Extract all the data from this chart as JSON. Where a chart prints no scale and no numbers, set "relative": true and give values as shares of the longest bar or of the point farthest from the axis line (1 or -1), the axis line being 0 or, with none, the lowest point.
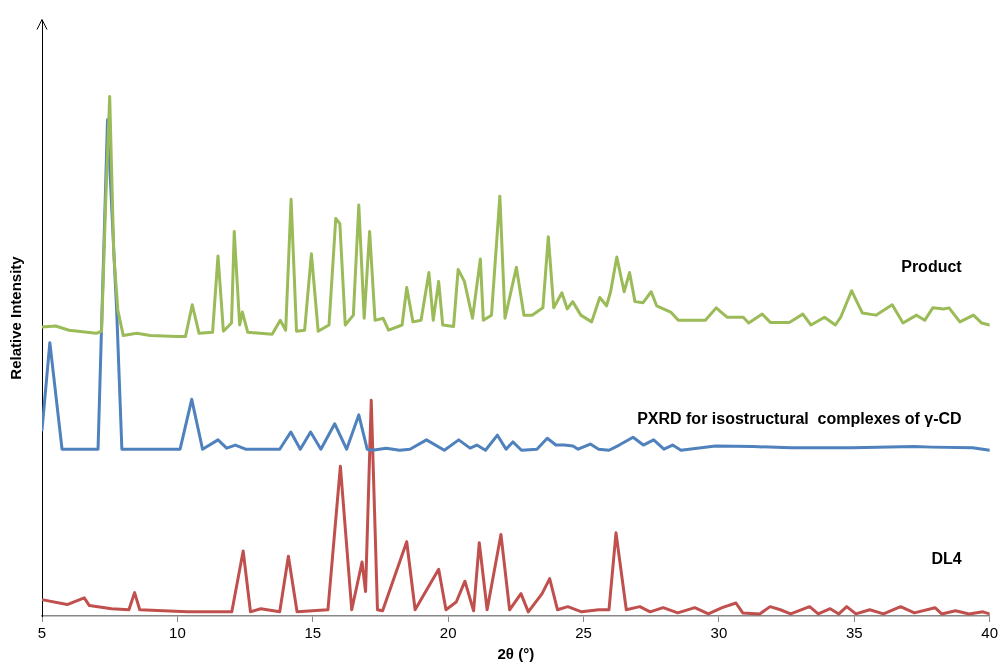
{
  "chart_data": {
    "type": "line",
    "relative": true,
    "xlabel": "2θ (°)",
    "ylabel": "Relative Intensity",
    "xlim": [
      5,
      40
    ],
    "xticks": [
      5,
      10,
      15,
      20,
      25,
      30,
      35,
      40
    ],
    "grid": false,
    "legend": false,
    "marker": "none",
    "line_style": "solid",
    "series": [
      {
        "name": "Product",
        "color": "#9bbb59",
        "x": [
          5.0,
          5.5,
          6.0,
          7.0,
          7.2,
          7.35,
          7.5,
          7.65,
          7.8,
          8.0,
          8.5,
          9.0,
          10.0,
          10.3,
          10.55,
          10.8,
          11.3,
          11.5,
          11.7,
          12.0,
          12.1,
          12.3,
          12.4,
          12.6,
          13.5,
          13.8,
          14.0,
          14.2,
          14.4,
          14.7,
          14.95,
          15.2,
          15.6,
          15.85,
          16.0,
          16.2,
          16.5,
          16.7,
          16.9,
          17.1,
          17.3,
          17.6,
          17.8,
          18.3,
          18.47,
          18.7,
          19.0,
          19.29,
          19.45,
          19.65,
          19.8,
          20.2,
          20.37,
          20.6,
          20.9,
          21.19,
          21.3,
          21.6,
          21.91,
          22.1,
          22.52,
          22.8,
          23.1,
          23.5,
          23.7,
          23.9,
          24.2,
          24.4,
          24.6,
          24.9,
          25.3,
          25.6,
          25.85,
          26.0,
          26.23,
          26.5,
          26.7,
          26.9,
          27.2,
          27.5,
          27.7,
          28.22,
          28.5,
          29.0,
          29.5,
          29.9,
          30.3,
          30.9,
          31.1,
          31.6,
          31.9,
          32.6,
          33.1,
          33.4,
          33.9,
          34.3,
          34.5,
          34.9,
          35.3,
          35.8,
          36.4,
          36.8,
          37.3,
          37.6,
          37.9,
          38.3,
          38.5,
          38.9,
          39.4,
          39.7,
          40.0
        ],
        "values": [
          0.556,
          0.558,
          0.55,
          0.544,
          0.548,
          0.794,
          1.0,
          0.697,
          0.589,
          0.54,
          0.544,
          0.54,
          0.538,
          0.538,
          0.599,
          0.544,
          0.546,
          0.693,
          0.548,
          0.564,
          0.74,
          0.56,
          0.585,
          0.546,
          0.542,
          0.569,
          0.55,
          0.802,
          0.548,
          0.55,
          0.697,
          0.548,
          0.56,
          0.765,
          0.755,
          0.56,
          0.579,
          0.791,
          0.573,
          0.74,
          0.569,
          0.573,
          0.55,
          0.56,
          0.632,
          0.566,
          0.569,
          0.661,
          0.569,
          0.644,
          0.56,
          0.557,
          0.667,
          0.644,
          0.573,
          0.687,
          0.569,
          0.579,
          0.808,
          0.573,
          0.671,
          0.579,
          0.579,
          0.593,
          0.73,
          0.593,
          0.622,
          0.591,
          0.605,
          0.579,
          0.566,
          0.613,
          0.597,
          0.624,
          0.691,
          0.624,
          0.661,
          0.605,
          0.603,
          0.624,
          0.597,
          0.585,
          0.569,
          0.569,
          0.569,
          0.593,
          0.575,
          0.575,
          0.564,
          0.581,
          0.565,
          0.565,
          0.581,
          0.56,
          0.575,
          0.56,
          0.575,
          0.626,
          0.583,
          0.579,
          0.599,
          0.564,
          0.579,
          0.569,
          0.593,
          0.591,
          0.593,
          0.566,
          0.579,
          0.564,
          0.56
        ]
      },
      {
        "name": "PXRD for isostructural  complexes of γ-CD",
        "color": "#4f81bd",
        "x": [
          5.0,
          5.29,
          5.74,
          7.07,
          7.42,
          7.76,
          7.95,
          10.1,
          10.53,
          10.93,
          11.5,
          11.82,
          12.14,
          12.52,
          13.78,
          14.19,
          14.54,
          14.92,
          15.3,
          15.81,
          16.25,
          16.7,
          17.01,
          17.2,
          17.71,
          18.21,
          18.59,
          19.2,
          19.86,
          20.39,
          20.81,
          21.06,
          21.38,
          21.82,
          22.14,
          22.39,
          22.71,
          23.28,
          23.66,
          23.98,
          24.29,
          24.61,
          24.8,
          25.25,
          25.56,
          25.94,
          26.32,
          26.83,
          27.21,
          27.59,
          27.97,
          28.29,
          28.6,
          29.87,
          31.26,
          32.65,
          34.93,
          37.22,
          37.85,
          39.37,
          40.0
        ],
        "values": [
          0.358,
          0.526,
          0.321,
          0.321,
          0.955,
          0.585,
          0.321,
          0.321,
          0.417,
          0.321,
          0.339,
          0.323,
          0.329,
          0.321,
          0.321,
          0.354,
          0.321,
          0.354,
          0.321,
          0.37,
          0.321,
          0.387,
          0.321,
          0.319,
          0.323,
          0.319,
          0.321,
          0.339,
          0.319,
          0.339,
          0.323,
          0.329,
          0.319,
          0.348,
          0.321,
          0.335,
          0.319,
          0.321,
          0.342,
          0.329,
          0.329,
          0.327,
          0.321,
          0.331,
          0.321,
          0.319,
          0.329,
          0.344,
          0.329,
          0.339,
          0.321,
          0.329,
          0.319,
          0.327,
          0.326,
          0.324,
          0.324,
          0.326,
          0.325,
          0.324,
          0.319
        ]
      },
      {
        "name": "DL4",
        "color": "#c0504d",
        "x": [
          5.04,
          5.93,
          6.56,
          6.75,
          7.57,
          8.21,
          8.42,
          8.61,
          10.36,
          12.01,
          12.43,
          12.7,
          13.08,
          13.78,
          14.1,
          14.42,
          15.56,
          16.02,
          16.44,
          16.82,
          16.95,
          17.16,
          17.39,
          17.58,
          18.47,
          18.78,
          19.65,
          19.92,
          20.3,
          20.62,
          20.94,
          21.15,
          21.44,
          21.95,
          22.27,
          22.69,
          22.96,
          23.47,
          23.75,
          24.04,
          24.42,
          24.93,
          25.56,
          25.94,
          26.2,
          26.58,
          27.08,
          27.46,
          27.94,
          28.48,
          29.11,
          29.61,
          30.12,
          30.63,
          30.88,
          31.51,
          31.89,
          32.27,
          32.65,
          33.35,
          33.67,
          34.11,
          34.43,
          34.72,
          35.06,
          35.57,
          36.08,
          36.71,
          37.22,
          37.98,
          38.23,
          38.74,
          39.24,
          39.75,
          40.0
        ],
        "values": [
          0.031,
          0.022,
          0.035,
          0.02,
          0.014,
          0.012,
          0.045,
          0.012,
          0.008,
          0.008,
          0.125,
          0.008,
          0.014,
          0.008,
          0.115,
          0.008,
          0.012,
          0.288,
          0.012,
          0.104,
          0.047,
          0.415,
          0.012,
          0.01,
          0.143,
          0.012,
          0.09,
          0.012,
          0.027,
          0.067,
          0.01,
          0.141,
          0.012,
          0.157,
          0.012,
          0.043,
          0.008,
          0.043,
          0.072,
          0.012,
          0.018,
          0.008,
          0.012,
          0.012,
          0.16,
          0.012,
          0.018,
          0.008,
          0.016,
          0.006,
          0.016,
          0.004,
          0.016,
          0.025,
          0.006,
          0.004,
          0.018,
          0.012,
          0.004,
          0.018,
          0.004,
          0.014,
          0.004,
          0.018,
          0.004,
          0.012,
          0.004,
          0.018,
          0.006,
          0.016,
          0.004,
          0.01,
          0.004,
          0.008,
          0.004
        ]
      }
    ]
  }
}
